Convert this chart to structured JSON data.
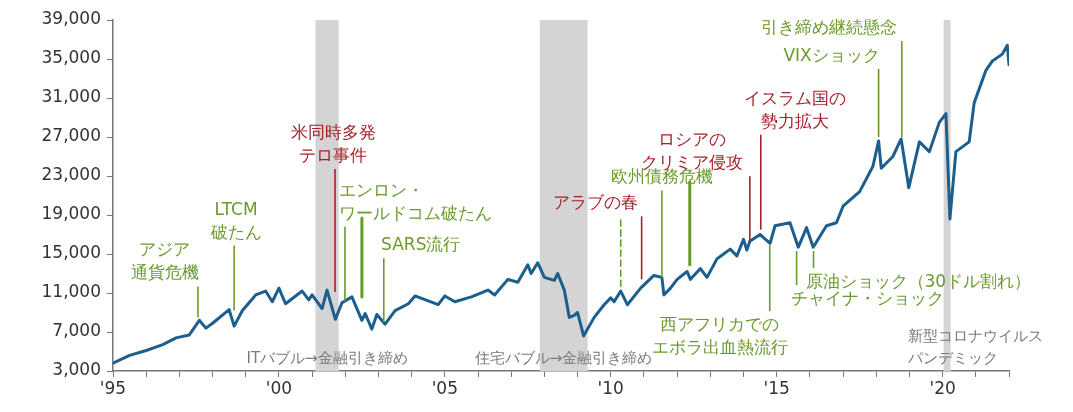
{
  "chart_data": {
    "type": "line",
    "x": [
      1995.0,
      1995.5,
      1996.0,
      1996.5,
      1996.9,
      1997.3,
      1997.6,
      1997.8,
      1998.0,
      1998.5,
      1998.65,
      1998.9,
      1999.3,
      1999.6,
      1999.8,
      2000.0,
      2000.2,
      2000.7,
      2000.9,
      2001.0,
      2001.3,
      2001.45,
      2001.7,
      2001.9,
      2002.2,
      2002.5,
      2002.6,
      2002.8,
      2002.95,
      2003.2,
      2003.5,
      2003.9,
      2004.1,
      2004.8,
      2005.0,
      2005.3,
      2005.8,
      2006.3,
      2006.5,
      2006.9,
      2007.2,
      2007.5,
      2007.6,
      2007.8,
      2008.0,
      2008.3,
      2008.4,
      2008.6,
      2008.75,
      2008.9,
      2009.0,
      2009.18,
      2009.5,
      2009.8,
      2010.0,
      2010.1,
      2010.3,
      2010.5,
      2010.9,
      2011.3,
      2011.54,
      2011.6,
      2011.8,
      2012.0,
      2012.3,
      2012.4,
      2012.7,
      2012.9,
      2013.2,
      2013.6,
      2013.8,
      2014.0,
      2014.1,
      2014.19,
      2014.5,
      2014.8,
      2014.95,
      2015.4,
      2015.65,
      2015.9,
      2016.1,
      2016.5,
      2016.8,
      2017.0,
      2017.5,
      2017.9,
      2018.07,
      2018.15,
      2018.5,
      2018.75,
      2018.98,
      2019.3,
      2019.6,
      2019.9,
      2020.1,
      2020.22,
      2020.4,
      2020.8,
      2020.95,
      2021.3,
      2021.5,
      2021.8,
      2021.95,
      2022.0
    ],
    "series": [
      {
        "color": "#1c5f8e",
        "values": [
          3800,
          4600,
          5100,
          5700,
          6400,
          6700,
          8200,
          7400,
          7900,
          9300,
          7600,
          9200,
          10800,
          11200,
          10100,
          11500,
          9900,
          11200,
          10300,
          10800,
          9400,
          11300,
          8300,
          10000,
          10600,
          8200,
          8900,
          7300,
          8800,
          7800,
          9200,
          9900,
          10700,
          9800,
          10700,
          10100,
          10600,
          11300,
          10800,
          12400,
          12100,
          13900,
          13000,
          14100,
          12600,
          12300,
          13000,
          11300,
          8500,
          8700,
          9000,
          6600,
          8500,
          9800,
          10500,
          10100,
          11200,
          9800,
          11500,
          12800,
          12600,
          10800,
          11500,
          12400,
          13200,
          12400,
          13500,
          12600,
          14500,
          15500,
          14800,
          16500,
          15400,
          16300,
          17000,
          16100,
          17900,
          18200,
          15700,
          17700,
          15700,
          17900,
          18200,
          19900,
          21400,
          24000,
          26600,
          23800,
          25000,
          26800,
          21800,
          26500,
          25500,
          28500,
          29400,
          18600,
          25500,
          26500,
          30500,
          33800,
          34800,
          35500,
          36400,
          34400
        ]
      },
      {
        "color": "#6b9a2c",
        "line_style": "dashed",
        "x": [
          2010.3,
          2010.3
        ],
        "values": [
          11700,
          18500
        ]
      },
      {
        "color": "#6b9a2c",
        "x": [
          2002.5,
          2002.5
        ],
        "values": [
          10600,
          18700
        ]
      },
      {
        "color": "#6b9a2c",
        "x": [
          2012.38,
          2012.38
        ],
        "values": [
          13900,
          22400
        ]
      }
    ],
    "xlim": [
      1995,
      2022
    ],
    "xticks": [
      {
        "value": 1995,
        "label": "'95"
      },
      {
        "value": 1996,
        "label": null
      },
      {
        "value": 1997,
        "label": null
      },
      {
        "value": 1998,
        "label": null
      },
      {
        "value": 1999,
        "label": null
      },
      {
        "value": 2000,
        "label": "'00"
      },
      {
        "value": 2001,
        "label": null
      },
      {
        "value": 2002,
        "label": null
      },
      {
        "value": 2003,
        "label": null
      },
      {
        "value": 2004,
        "label": null
      },
      {
        "value": 2005,
        "label": "'05"
      },
      {
        "value": 2006,
        "label": null
      },
      {
        "value": 2007,
        "label": null
      },
      {
        "value": 2008,
        "label": null
      },
      {
        "value": 2009,
        "label": null
      },
      {
        "value": 2010,
        "label": "'10"
      },
      {
        "value": 2011,
        "label": null
      },
      {
        "value": 2012,
        "label": null
      },
      {
        "value": 2013,
        "label": null
      },
      {
        "value": 2014,
        "label": null
      },
      {
        "value": 2015,
        "label": "'15"
      },
      {
        "value": 2016,
        "label": null
      },
      {
        "value": 2017,
        "label": null
      },
      {
        "value": 2018,
        "label": null
      },
      {
        "value": 2019,
        "label": null
      },
      {
        "value": 2020,
        "label": "'20"
      },
      {
        "value": 2021,
        "label": null
      },
      {
        "value": 2022,
        "label": null
      }
    ],
    "ylim": [
      3000,
      39000
    ],
    "yticks": [
      {
        "value": 3000,
        "label": "3,000"
      },
      {
        "value": 7000,
        "label": "7,000"
      },
      {
        "value": 11000,
        "label": "11,000"
      },
      {
        "value": 15000,
        "label": "15,000"
      },
      {
        "value": 19000,
        "label": "19,000"
      },
      {
        "value": 23000,
        "label": "23,000"
      },
      {
        "value": 27000,
        "label": "27,000"
      },
      {
        "value": 31000,
        "label": "31,000"
      },
      {
        "value": 35000,
        "label": "35,000"
      },
      {
        "value": 39000,
        "label": "39,000"
      }
    ],
    "bands": [
      {
        "axis": "x",
        "from": 2001.1,
        "to": 2001.8,
        "color": "#d4d4d4",
        "label": "ITバブル→金融引き締め"
      },
      {
        "axis": "x",
        "from": 2007.86,
        "to": 2009.3,
        "color": "#d4d4d4",
        "label": "住宅バブル→金融引き締め"
      },
      {
        "axis": "x",
        "from": 2020.03,
        "to": 2020.24,
        "color": "#d4d4d4",
        "label": "新型コロナウイルスパンデミック"
      }
    ],
    "annotations": [
      {
        "text": "アジア通貨危機",
        "x": 1997.56,
        "y": 8500
      },
      {
        "text": "LTCM破たん",
        "x": 1998.65,
        "y": 9200
      },
      {
        "text": "米同時多発テロ事件",
        "x": 2001.69,
        "y": 11100
      },
      {
        "text": "エンロン・ワールドコム破たん",
        "x": 2001.99,
        "y": 10200
      },
      {
        "text": "SARS流行",
        "x": 2003.16,
        "y": 8000
      },
      {
        "text": "アラブの春",
        "x": 2010.93,
        "y": 12400
      },
      {
        "text": "欧州債務危機",
        "x": 2011.54,
        "y": 12600
      },
      {
        "text": "ロシアのクリミア侵攻",
        "x": 2014.19,
        "y": 16300
      },
      {
        "text": "イスラム国の勢力拡大",
        "x": 2014.52,
        "y": 17500
      },
      {
        "text": "VIXショック",
        "x": 2018.07,
        "y": 27000
      },
      {
        "text": "引き締め継続懸念",
        "x": 2018.77,
        "y": 27000
      },
      {
        "text": "西アフリカでのエボラ出血熱流行",
        "x": 2014.79,
        "y": 16000
      },
      {
        "text": "チャイナ・ショック",
        "x": 2015.6,
        "y": 15300
      },
      {
        "text": "原油ショック（30ドル割れ）",
        "x": 2016.11,
        "y": 15300
      }
    ],
    "grid": false,
    "legend": false,
    "marker": "none"
  }
}
